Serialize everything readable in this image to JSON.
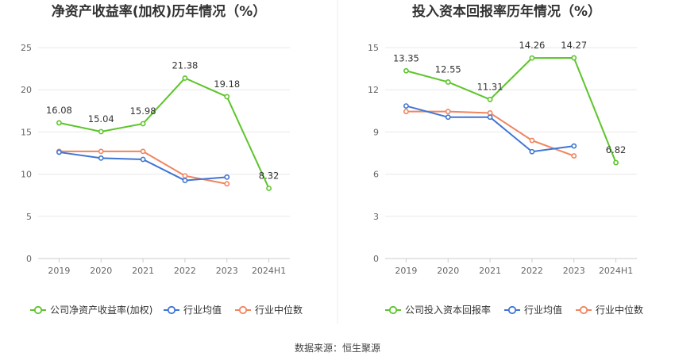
{
  "source": "数据来源：恒生聚源",
  "colors": {
    "company": "#5cc52b",
    "avg": "#3e75d4",
    "median": "#f0845f"
  },
  "chart_data": [
    {
      "type": "line",
      "title": "净资产收益率(加权)历年情况（%）",
      "categories": [
        "2019",
        "2020",
        "2021",
        "2022",
        "2023",
        "2024H1"
      ],
      "ylim": [
        0,
        25
      ],
      "yticks": [
        0,
        5,
        10,
        15,
        20,
        25
      ],
      "series": [
        {
          "key": "company",
          "name": "公司净资产收益率(加权)",
          "values": [
            16.08,
            15.04,
            15.98,
            21.38,
            19.18,
            8.32
          ],
          "labels": [
            "16.08",
            "15.04",
            "15.98",
            "21.38",
            "19.18",
            "8.32"
          ]
        },
        {
          "key": "avg",
          "name": "行业均值",
          "values": [
            12.6,
            11.9,
            11.75,
            9.25,
            9.65,
            null
          ]
        },
        {
          "key": "median",
          "name": "行业中位数",
          "values": [
            12.7,
            12.7,
            12.7,
            9.8,
            8.85,
            null
          ]
        }
      ]
    },
    {
      "type": "line",
      "title": "投入资本回报率历年情况（%）",
      "categories": [
        "2019",
        "2020",
        "2021",
        "2022",
        "2023",
        "2024H1"
      ],
      "ylim": [
        0,
        15
      ],
      "yticks": [
        0,
        3,
        6,
        9,
        12,
        15
      ],
      "series": [
        {
          "key": "company",
          "name": "公司投入资本回报率",
          "values": [
            13.35,
            12.55,
            11.31,
            14.26,
            14.27,
            6.82
          ],
          "labels": [
            "13.35",
            "12.55",
            "11.31",
            "14.26",
            "14.27",
            "6.82"
          ]
        },
        {
          "key": "avg",
          "name": "行业均值",
          "values": [
            10.85,
            10.05,
            10.05,
            7.6,
            8.0,
            null
          ]
        },
        {
          "key": "median",
          "name": "行业中位数",
          "values": [
            10.45,
            10.45,
            10.35,
            8.4,
            7.3,
            null
          ]
        }
      ]
    }
  ]
}
